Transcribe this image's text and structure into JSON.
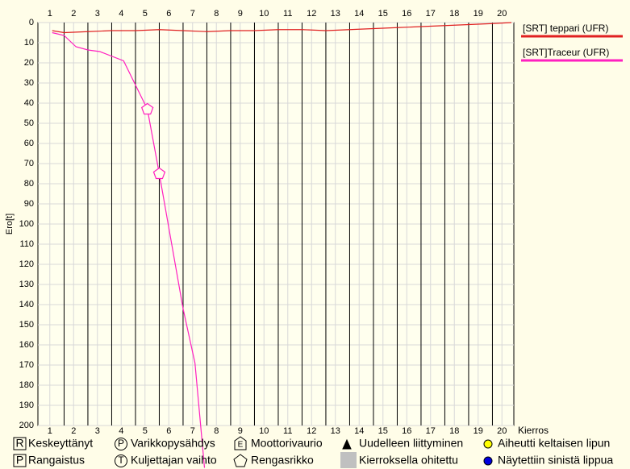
{
  "chart_data": {
    "type": "line",
    "y_label": "Ero[t]",
    "x_label": "Kierros",
    "xlim": [
      0.5,
      20.5
    ],
    "xticks": [
      1,
      2,
      3,
      4,
      5,
      6,
      7,
      8,
      9,
      10,
      11,
      12,
      13,
      14,
      15,
      16,
      17,
      18,
      19,
      20
    ],
    "ylim": [
      0,
      200
    ],
    "yticks": [
      0,
      10,
      20,
      30,
      40,
      50,
      60,
      70,
      80,
      90,
      100,
      110,
      120,
      130,
      140,
      150,
      160,
      170,
      180,
      190,
      200
    ],
    "inverted_y": true,
    "grid": true,
    "legend": "right",
    "series": [
      {
        "name": "[SRT] teppari (UFR)",
        "color": "#e02020",
        "x": [
          1.1,
          1.6,
          2.6,
          3.6,
          4.6,
          5.6,
          6.6,
          7.6,
          8.6,
          9.6,
          10.6,
          11.6,
          12.6,
          13.6,
          14.6,
          15.6,
          16.6,
          17.6,
          18.6,
          19.6,
          20.4
        ],
        "values": [
          4,
          5,
          4.5,
          4,
          4,
          3.5,
          4,
          4.5,
          4,
          4,
          3.5,
          3.5,
          4,
          3.5,
          3,
          2.5,
          2,
          1.5,
          1,
          0.5,
          0
        ]
      },
      {
        "name": "[SRT]Traceur (UFR)",
        "color": "#ff20c0",
        "x": [
          1.1,
          1.6,
          2.1,
          2.6,
          3.1,
          4.1,
          5.1,
          5.6,
          6.6,
          7.1,
          7.5
        ],
        "values": [
          5,
          6.4,
          12,
          13.6,
          14.4,
          19,
          43,
          75,
          142,
          169,
          221
        ],
        "events": [
          {
            "index": 6,
            "type": "tyre"
          },
          {
            "index": 7,
            "type": "tyre"
          }
        ]
      }
    ],
    "symbol_legend": [
      {
        "icon": "R",
        "label": "Keskeyttänyt"
      },
      {
        "icon": "P",
        "label": "Varikkopysähdys"
      },
      {
        "icon": "E",
        "label": "Moottorivaurio"
      },
      {
        "label": "Uudelleen liittyminen"
      },
      {
        "label": "Aiheutti keltaisen lipun"
      },
      {
        "icon": "P",
        "label": "Rangaistus"
      },
      {
        "icon": "T",
        "label": "Kuljettajan vaihto"
      },
      {
        "label": "Rengasrikko"
      },
      {
        "label": "Kierroksella ohitettu"
      },
      {
        "label": "Näytettiin sinistä lippua"
      }
    ]
  }
}
